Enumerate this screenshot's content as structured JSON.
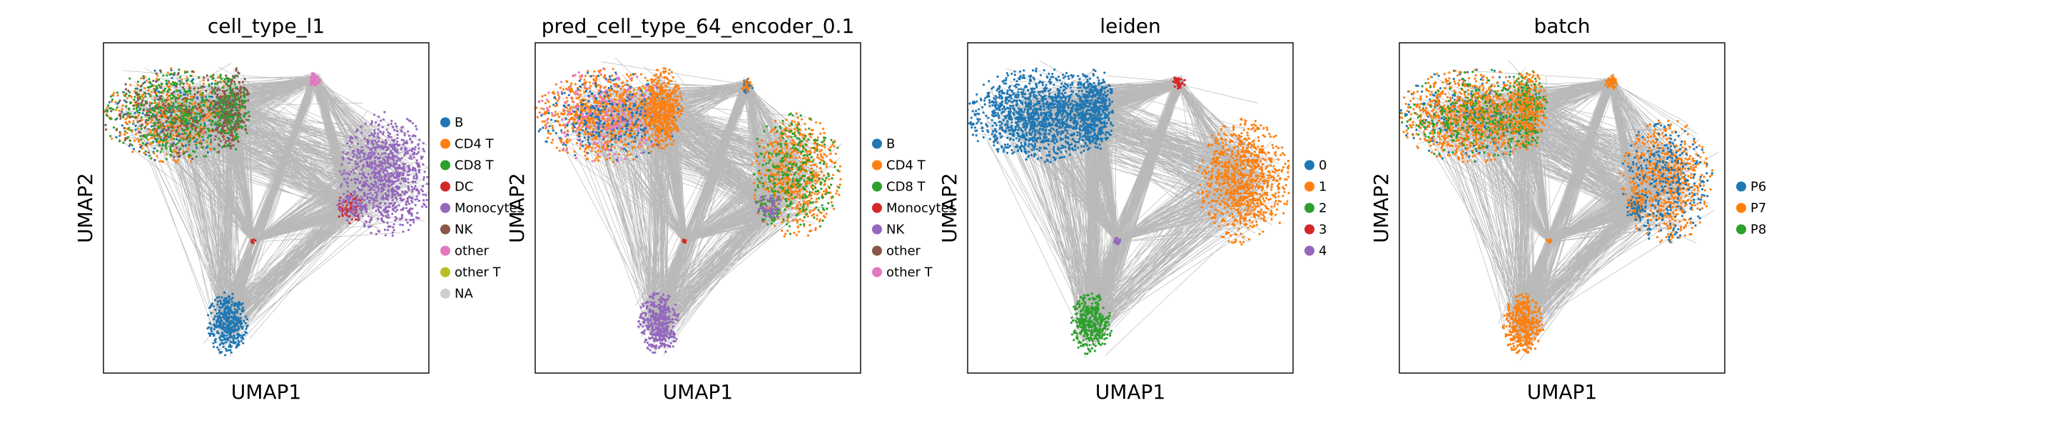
{
  "chart_data": [
    {
      "type": "scatter",
      "title": "cell_type_l1",
      "xlabel": "UMAP1",
      "ylabel": "UMAP2",
      "grid": false,
      "legend": "right",
      "legend_entries": [
        {
          "label": "B",
          "color": "#1f77b4"
        },
        {
          "label": "CD4 T",
          "color": "#ff7f0e"
        },
        {
          "label": "CD8 T",
          "color": "#2ca02c"
        },
        {
          "label": "DC",
          "color": "#d62728"
        },
        {
          "label": "Monocytes",
          "color": "#9467bd"
        },
        {
          "label": "NK",
          "color": "#8c564b"
        },
        {
          "label": "other",
          "color": "#e377c2"
        },
        {
          "label": "other T",
          "color": "#bcbd22"
        },
        {
          "label": "NA",
          "color": "#cfcfcf"
        }
      ],
      "clusters": [
        {
          "cx": 0.22,
          "cy": 0.78,
          "rx": 0.14,
          "ry": 0.09,
          "colors": [
            "#ff7f0e",
            "#2ca02c",
            "#1f77b4",
            "#8c564b",
            "#ff7f0e",
            "#2ca02c"
          ],
          "n": 1400
        },
        {
          "cx": 0.39,
          "cy": 0.8,
          "rx": 0.04,
          "ry": 0.08,
          "colors": [
            "#8c564b",
            "#2ca02c",
            "#8c564b"
          ],
          "n": 450
        },
        {
          "cx": 0.87,
          "cy": 0.6,
          "rx": 0.09,
          "ry": 0.12,
          "colors": [
            "#9467bd"
          ],
          "n": 900
        },
        {
          "cx": 0.76,
          "cy": 0.5,
          "rx": 0.03,
          "ry": 0.03,
          "colors": [
            "#d62728",
            "#9467bd"
          ],
          "n": 120
        },
        {
          "cx": 0.38,
          "cy": 0.15,
          "rx": 0.04,
          "ry": 0.06,
          "colors": [
            "#1f77b4"
          ],
          "n": 400
        },
        {
          "cx": 0.65,
          "cy": 0.89,
          "rx": 0.012,
          "ry": 0.015,
          "colors": [
            "#e377c2"
          ],
          "n": 50
        },
        {
          "cx": 0.46,
          "cy": 0.4,
          "rx": 0.005,
          "ry": 0.005,
          "colors": [
            "#d62728"
          ],
          "n": 10
        }
      ]
    },
    {
      "type": "scatter",
      "title": "pred_cell_type_64_encoder_0.1",
      "xlabel": "UMAP1",
      "ylabel": "UMAP2",
      "grid": false,
      "legend": "right",
      "legend_entries": [
        {
          "label": "B",
          "color": "#1f77b4"
        },
        {
          "label": "CD4 T",
          "color": "#ff7f0e"
        },
        {
          "label": "CD8 T",
          "color": "#2ca02c"
        },
        {
          "label": "Monocytes",
          "color": "#d62728"
        },
        {
          "label": "NK",
          "color": "#9467bd"
        },
        {
          "label": "other",
          "color": "#8c564b"
        },
        {
          "label": "other T",
          "color": "#e377c2"
        }
      ],
      "clusters": [
        {
          "cx": 0.22,
          "cy": 0.78,
          "rx": 0.14,
          "ry": 0.09,
          "colors": [
            "#ff7f0e",
            "#ff7f0e",
            "#1f77b4",
            "#ff7f0e",
            "#e377c2"
          ],
          "n": 1400
        },
        {
          "cx": 0.39,
          "cy": 0.8,
          "rx": 0.04,
          "ry": 0.08,
          "colors": [
            "#ff7f0e"
          ],
          "n": 450
        },
        {
          "cx": 0.8,
          "cy": 0.6,
          "rx": 0.09,
          "ry": 0.12,
          "colors": [
            "#ff7f0e",
            "#2ca02c",
            "#ff7f0e"
          ],
          "n": 900
        },
        {
          "cx": 0.72,
          "cy": 0.5,
          "rx": 0.03,
          "ry": 0.03,
          "colors": [
            "#9467bd",
            "#2ca02c"
          ],
          "n": 120
        },
        {
          "cx": 0.38,
          "cy": 0.15,
          "rx": 0.04,
          "ry": 0.06,
          "colors": [
            "#9467bd"
          ],
          "n": 400
        },
        {
          "cx": 0.65,
          "cy": 0.87,
          "rx": 0.012,
          "ry": 0.015,
          "colors": [
            "#ff7f0e",
            "#1f77b4"
          ],
          "n": 50
        },
        {
          "cx": 0.46,
          "cy": 0.4,
          "rx": 0.005,
          "ry": 0.005,
          "colors": [
            "#d62728"
          ],
          "n": 10
        }
      ]
    },
    {
      "type": "scatter",
      "title": "leiden",
      "xlabel": "UMAP1",
      "ylabel": "UMAP2",
      "grid": false,
      "legend": "right",
      "legend_entries": [
        {
          "label": "0",
          "color": "#1f77b4"
        },
        {
          "label": "1",
          "color": "#ff7f0e"
        },
        {
          "label": "2",
          "color": "#2ca02c"
        },
        {
          "label": "3",
          "color": "#d62728"
        },
        {
          "label": "4",
          "color": "#9467bd"
        }
      ],
      "clusters": [
        {
          "cx": 0.22,
          "cy": 0.78,
          "rx": 0.14,
          "ry": 0.09,
          "colors": [
            "#1f77b4"
          ],
          "n": 1400
        },
        {
          "cx": 0.39,
          "cy": 0.8,
          "rx": 0.04,
          "ry": 0.08,
          "colors": [
            "#1f77b4"
          ],
          "n": 450
        },
        {
          "cx": 0.85,
          "cy": 0.58,
          "rx": 0.09,
          "ry": 0.12,
          "colors": [
            "#ff7f0e"
          ],
          "n": 900
        },
        {
          "cx": 0.38,
          "cy": 0.15,
          "rx": 0.04,
          "ry": 0.06,
          "colors": [
            "#2ca02c"
          ],
          "n": 400
        },
        {
          "cx": 0.65,
          "cy": 0.88,
          "rx": 0.012,
          "ry": 0.015,
          "colors": [
            "#d62728"
          ],
          "n": 50
        },
        {
          "cx": 0.46,
          "cy": 0.4,
          "rx": 0.008,
          "ry": 0.008,
          "colors": [
            "#9467bd"
          ],
          "n": 20
        }
      ]
    },
    {
      "type": "scatter",
      "title": "batch",
      "xlabel": "UMAP1",
      "ylabel": "UMAP2",
      "grid": false,
      "legend": "right",
      "legend_entries": [
        {
          "label": "P6",
          "color": "#1f77b4"
        },
        {
          "label": "P7",
          "color": "#ff7f0e"
        },
        {
          "label": "P8",
          "color": "#2ca02c"
        }
      ],
      "clusters": [
        {
          "cx": 0.22,
          "cy": 0.78,
          "rx": 0.14,
          "ry": 0.09,
          "colors": [
            "#ff7f0e",
            "#ff7f0e",
            "#ff7f0e",
            "#2ca02c",
            "#1f77b4"
          ],
          "n": 1400
        },
        {
          "cx": 0.39,
          "cy": 0.8,
          "rx": 0.04,
          "ry": 0.08,
          "colors": [
            "#ff7f0e",
            "#2ca02c"
          ],
          "n": 450
        },
        {
          "cx": 0.82,
          "cy": 0.58,
          "rx": 0.09,
          "ry": 0.12,
          "colors": [
            "#ff7f0e",
            "#ff7f0e",
            "#1f77b4"
          ],
          "n": 900
        },
        {
          "cx": 0.73,
          "cy": 0.5,
          "rx": 0.02,
          "ry": 0.03,
          "colors": [
            "#1f77b4",
            "#ff7f0e"
          ],
          "n": 100
        },
        {
          "cx": 0.38,
          "cy": 0.15,
          "rx": 0.04,
          "ry": 0.06,
          "colors": [
            "#ff7f0e"
          ],
          "n": 400
        },
        {
          "cx": 0.65,
          "cy": 0.88,
          "rx": 0.012,
          "ry": 0.015,
          "colors": [
            "#ff7f0e"
          ],
          "n": 50
        },
        {
          "cx": 0.46,
          "cy": 0.4,
          "rx": 0.005,
          "ry": 0.005,
          "colors": [
            "#ff7f0e"
          ],
          "n": 10
        }
      ]
    }
  ]
}
